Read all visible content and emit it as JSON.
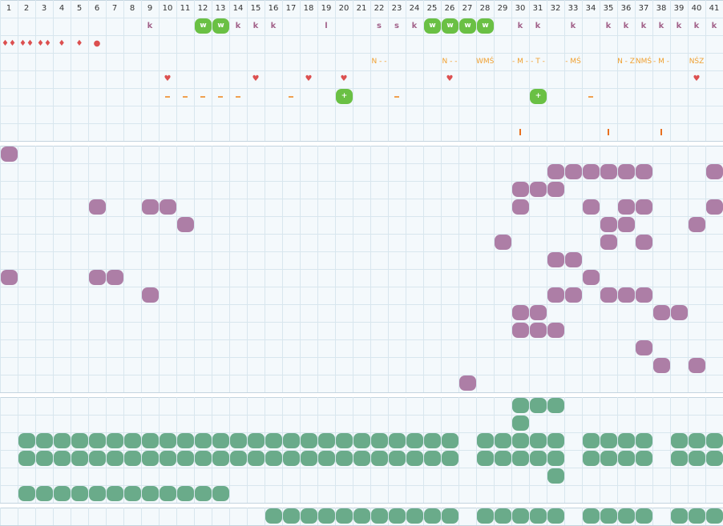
{
  "colors": {
    "grid_line": "#d8e6ee",
    "grid_line_strong": "#c4d4df",
    "panel_bg": "#f4f9fc",
    "plum": "#ad7ea6",
    "sage": "#6aab8a",
    "green": "#6ac044",
    "red_marker": "#dc5050",
    "orange_label": "#f0a030",
    "k_color": "#a2628a"
  },
  "icons": {
    "heart": "heart-icon",
    "drop": "drop-icon",
    "circle": "circle-icon",
    "plus": "plus-icon"
  },
  "columns": [
    "1",
    "2",
    "3",
    "4",
    "5",
    "6",
    "7",
    "8",
    "9",
    "10",
    "11",
    "12",
    "13",
    "14",
    "15",
    "16",
    "17",
    "18",
    "19",
    "20",
    "21",
    "22",
    "23",
    "24",
    "25",
    "26",
    "27",
    "28",
    "29",
    "30",
    "31",
    "32",
    "33",
    "34",
    "35",
    "36",
    "37",
    "38",
    "39",
    "40",
    "41"
  ],
  "row_k": [
    "",
    "",
    "",
    "",
    "",
    "",
    "",
    "",
    "k",
    "",
    "",
    "w",
    "w",
    "k",
    "k",
    "k",
    "",
    "",
    "l",
    "",
    "",
    "s",
    "s",
    "k",
    "w",
    "w",
    "w",
    "w",
    "",
    "k",
    "k",
    "",
    "k",
    "",
    "k",
    "k",
    "k",
    "k",
    "k",
    "k",
    "k"
  ],
  "row_drops": [
    "♦♦",
    "♦♦",
    "♦♦",
    "♦",
    "♦",
    "●",
    "",
    "",
    "",
    "",
    "",
    "",
    "",
    "",
    "",
    "",
    "",
    "",
    "",
    "",
    "",
    "",
    "",
    "",
    "",
    "",
    "",
    "",
    "",
    "",
    "",
    "",
    "",
    "",
    "",
    "",
    "",
    "",
    "",
    "",
    ""
  ],
  "row_labels": [
    "",
    "",
    "",
    "",
    "",
    "",
    "",
    "",
    "",
    "",
    "",
    "",
    "",
    "",
    "",
    "",
    "",
    "",
    "",
    "",
    "",
    "N - -",
    "",
    "",
    "",
    "N - -",
    "",
    "WMŚ",
    "",
    "- M -",
    "- T -",
    "",
    "- MŚ",
    "",
    "",
    "N - Z",
    "NMŚ",
    "- M -",
    "",
    "NŚZ",
    ""
  ],
  "row_hearts": [
    10,
    15,
    18,
    20,
    26,
    40
  ],
  "row_dashes": [
    10,
    11,
    12,
    13,
    14,
    17,
    23,
    34
  ],
  "row_plus": [
    20,
    31
  ],
  "row_bars": [
    30,
    35,
    38
  ],
  "plum_rows": [
    [
      1
    ],
    [
      32,
      33,
      34,
      35,
      36,
      37,
      41
    ],
    [
      30,
      31,
      32
    ],
    [
      6,
      9,
      10,
      30,
      34,
      36,
      37,
      41
    ],
    [
      11,
      35,
      36,
      40
    ],
    [
      29,
      35,
      37
    ],
    [
      32,
      33
    ],
    [
      1,
      6,
      7,
      34
    ],
    [
      9,
      32,
      33,
      35,
      36,
      37
    ],
    [
      30,
      31,
      38,
      39
    ],
    [
      30,
      31,
      32
    ],
    [
      37
    ],
    [
      38,
      40
    ],
    [
      27
    ]
  ],
  "sage_rows": [
    [
      30,
      31,
      32
    ],
    [
      30
    ],
    [
      2,
      3,
      4,
      5,
      6,
      7,
      8,
      9,
      10,
      11,
      12,
      13,
      14,
      15,
      16,
      17,
      18,
      19,
      20,
      21,
      22,
      23,
      24,
      25,
      26,
      28,
      29,
      30,
      31,
      32,
      34,
      35,
      36,
      37,
      39,
      40,
      41
    ],
    [
      2,
      3,
      4,
      5,
      6,
      7,
      8,
      9,
      10,
      11,
      12,
      13,
      14,
      15,
      16,
      17,
      18,
      19,
      20,
      21,
      22,
      23,
      24,
      25,
      26,
      28,
      29,
      30,
      31,
      32,
      34,
      35,
      36,
      37,
      39,
      40,
      41
    ],
    [
      32
    ],
    [
      2,
      3,
      4,
      5,
      6,
      7,
      8,
      9,
      10,
      11,
      12,
      13
    ]
  ],
  "bottom_row": [
    16,
    17,
    18,
    19,
    20,
    21,
    22,
    23,
    24,
    25,
    26,
    28,
    29,
    30,
    31,
    32,
    34,
    35,
    36,
    37,
    39,
    40,
    41
  ]
}
